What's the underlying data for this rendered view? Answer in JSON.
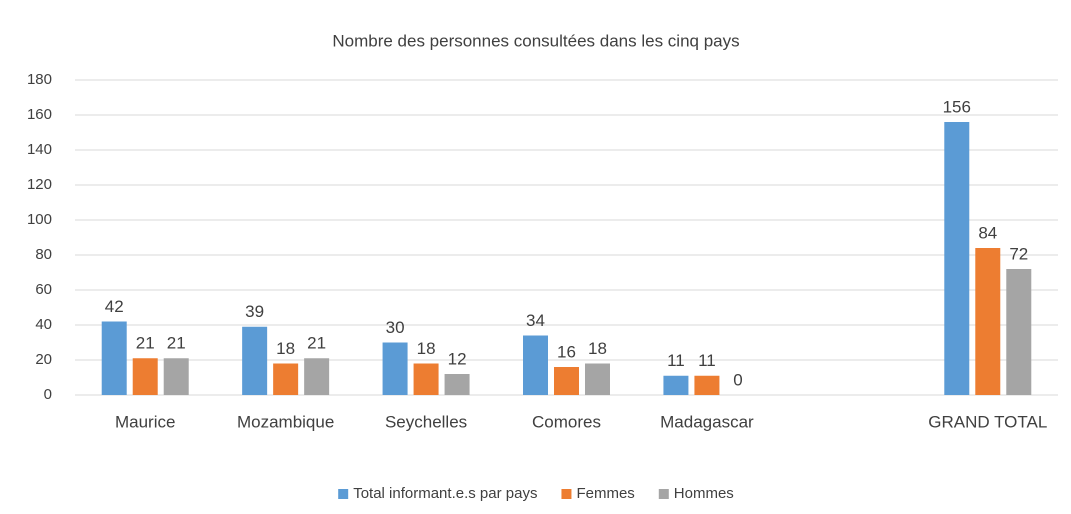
{
  "chart_data": {
    "type": "bar",
    "title": "Nombre des personnes consultées dans les cinq pays",
    "categories": [
      "Maurice",
      "Mozambique",
      "Seychelles",
      "Comores",
      "Madagascar",
      null,
      "GRAND TOTAL"
    ],
    "series": [
      {
        "name": "Total informant.e.s par pays",
        "color": "#5b9bd5",
        "values": [
          42,
          39,
          30,
          34,
          11,
          null,
          156
        ]
      },
      {
        "name": "Femmes",
        "color": "#ed7d31",
        "values": [
          21,
          18,
          18,
          16,
          11,
          null,
          84
        ]
      },
      {
        "name": "Hommes",
        "color": "#a5a5a5",
        "values": [
          21,
          21,
          12,
          18,
          0,
          null,
          72
        ]
      }
    ],
    "ylim": [
      0,
      180
    ],
    "yticks": [
      0,
      20,
      40,
      60,
      80,
      100,
      120,
      140,
      160,
      180
    ],
    "grid": true,
    "legend": "bottom"
  }
}
